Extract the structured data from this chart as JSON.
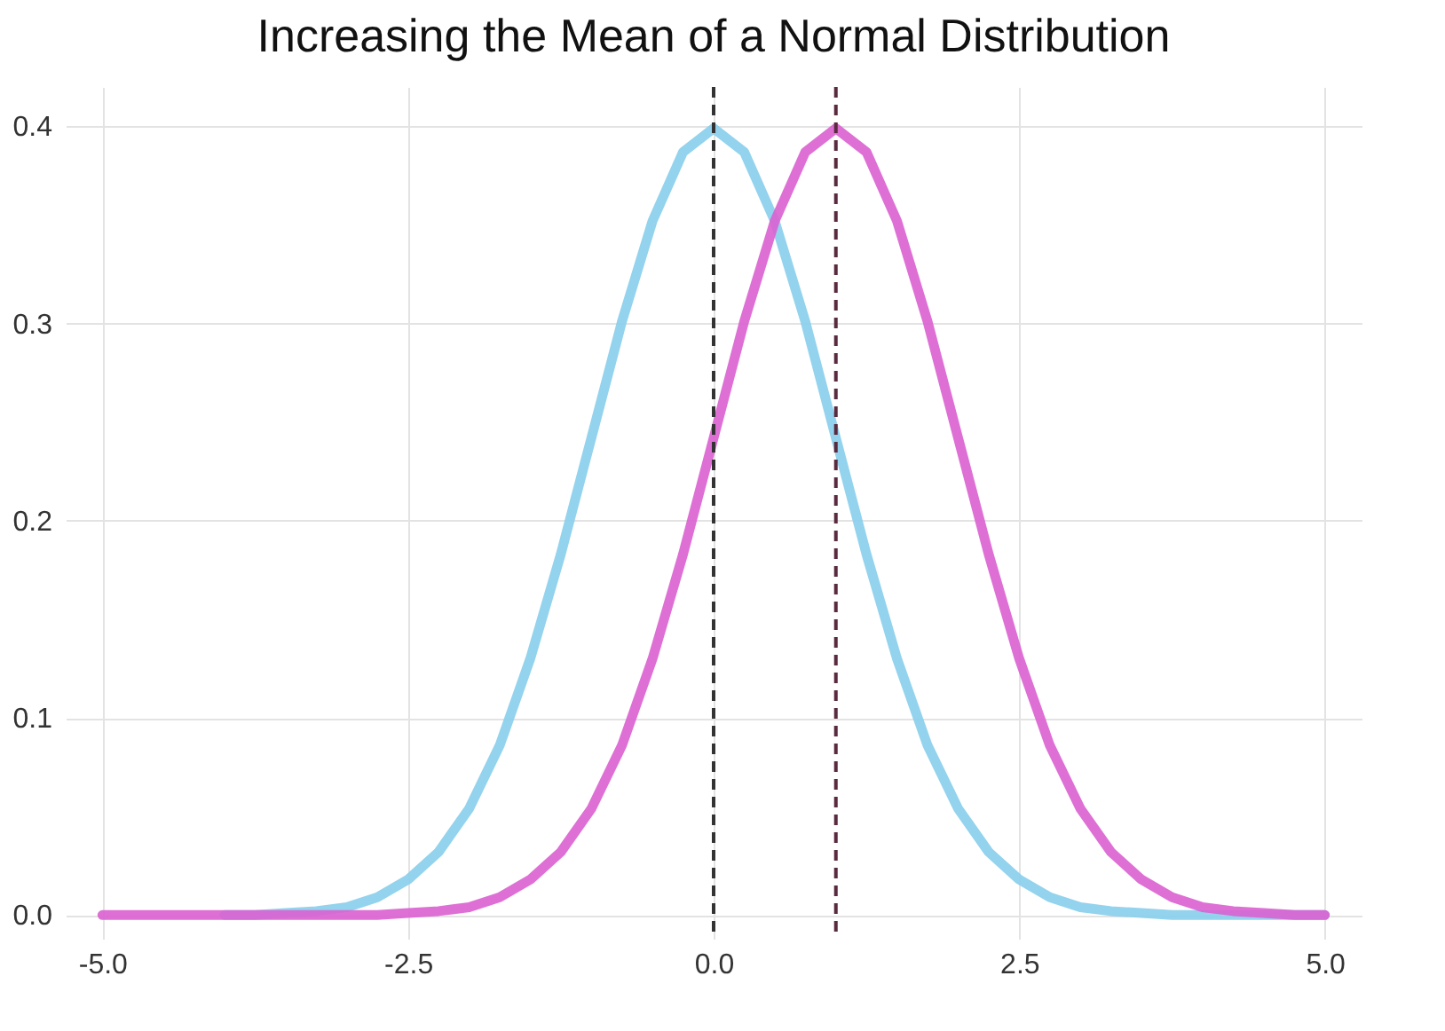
{
  "chart_data": {
    "type": "line",
    "title": "Increasing the Mean of a Normal Distribution",
    "x": [
      -5,
      -4.75,
      -4.5,
      -4.25,
      -4,
      -3.75,
      -3.5,
      -3.25,
      -3,
      -2.75,
      -2.5,
      -2.25,
      -2,
      -1.75,
      -1.5,
      -1.25,
      -1,
      -0.75,
      -0.5,
      -0.25,
      0,
      0.25,
      0.5,
      0.75,
      1,
      1.25,
      1.5,
      1.75,
      2,
      2.25,
      2.5,
      2.75,
      3,
      3.25,
      3.5,
      3.75,
      4,
      4.25,
      4.5,
      4.75,
      5
    ],
    "series": [
      {
        "color": "#87ceeb",
        "values": [
          null,
          null,
          null,
          null,
          0,
          0,
          0.001,
          0.002,
          0.004,
          0.009,
          0.018,
          0.032,
          0.054,
          0.086,
          0.13,
          0.183,
          0.242,
          0.301,
          0.352,
          0.387,
          0.399,
          0.387,
          0.352,
          0.301,
          0.242,
          0.183,
          0.13,
          0.086,
          0.054,
          0.032,
          0.018,
          0.009,
          0.004,
          0.002,
          0.001,
          0,
          0,
          0,
          0,
          0,
          0
        ]
      },
      {
        "color": "#da60d0",
        "values": [
          0,
          0,
          0,
          0,
          0,
          0,
          0,
          0,
          0,
          0,
          0.001,
          0.002,
          0.004,
          0.009,
          0.018,
          0.032,
          0.054,
          0.086,
          0.13,
          0.183,
          0.242,
          0.301,
          0.352,
          0.387,
          0.399,
          0.387,
          0.352,
          0.301,
          0.242,
          0.183,
          0.13,
          0.086,
          0.054,
          0.032,
          0.018,
          0.009,
          0.004,
          0.002,
          0.001,
          0,
          0
        ]
      }
    ],
    "xlim": [
      -5.3,
      5.3
    ],
    "ylim": [
      -0.012,
      0.42
    ],
    "xticks": [
      {
        "value": -5,
        "label": "-5.0"
      },
      {
        "value": -2.5,
        "label": "-2.5"
      },
      {
        "value": 0,
        "label": "0.0"
      },
      {
        "value": 2.5,
        "label": "2.5"
      },
      {
        "value": 5,
        "label": "5.0"
      }
    ],
    "yticks": [
      {
        "value": 0,
        "label": "0.0"
      },
      0.1,
      0.2,
      0.3,
      0.4
    ],
    "ref_lines": [
      {
        "axis": "x",
        "value": 0,
        "color": "#333333",
        "line_style": "dashed"
      },
      {
        "axis": "x",
        "value": 1,
        "color": "#5a2a3e",
        "line_style": "dashed"
      }
    ],
    "grid": true,
    "line_style": "solid"
  }
}
